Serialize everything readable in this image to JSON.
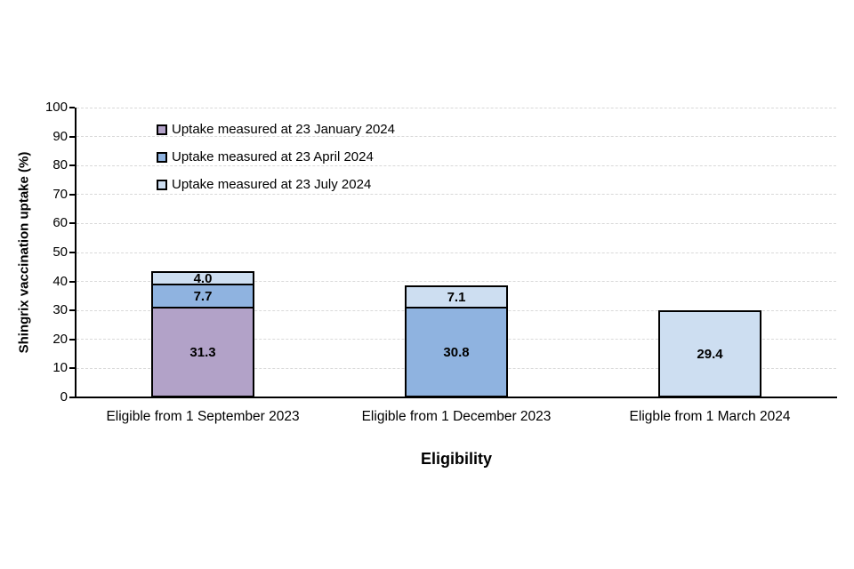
{
  "chart_data": {
    "type": "bar",
    "stacked": true,
    "title": "",
    "xlabel": "Eligibility",
    "ylabel": "Shingrix vaccination uptake (%)",
    "ylim": [
      0,
      100
    ],
    "yticks": [
      0,
      10,
      20,
      30,
      40,
      50,
      60,
      70,
      80,
      90,
      100
    ],
    "grid": "horizontal-dashed",
    "gridline_color": "#D9D9D9",
    "axis_color": "#000000",
    "segment_border_color": "#000000",
    "value_label_color": "#000000",
    "background_color": "#FFFFFF",
    "legend_position": "inside-top-left",
    "data_labels_shown": true,
    "categories": [
      "Eligible from 1 September 2023",
      "Eligible from 1 December 2023",
      "Eligble from 1 March 2024"
    ],
    "series": [
      {
        "name": "Uptake measured at 23 January 2024",
        "color": "#B2A2C8",
        "values": [
          31.3,
          null,
          null
        ]
      },
      {
        "name": "Uptake measured at 23 April 2024",
        "color": "#8FB3E0",
        "values": [
          7.7,
          30.8,
          null
        ]
      },
      {
        "name": "Uptake measured at 23 July 2024",
        "color": "#CDDEF1",
        "values": [
          4.0,
          7.1,
          29.4
        ]
      }
    ]
  }
}
